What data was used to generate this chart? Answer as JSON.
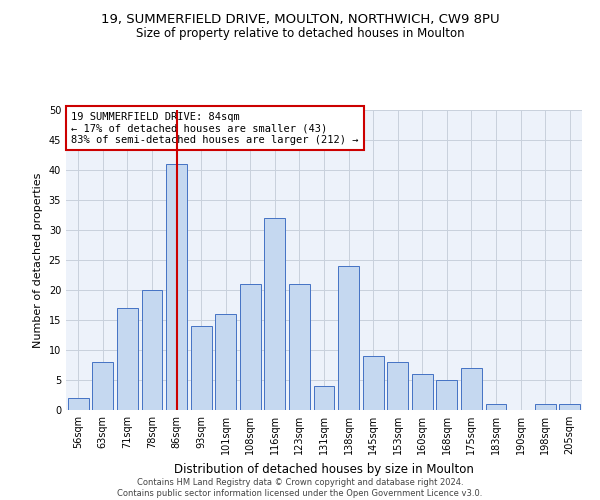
{
  "title1": "19, SUMMERFIELD DRIVE, MOULTON, NORTHWICH, CW9 8PU",
  "title2": "Size of property relative to detached houses in Moulton",
  "xlabel": "Distribution of detached houses by size in Moulton",
  "ylabel": "Number of detached properties",
  "categories": [
    "56sqm",
    "63sqm",
    "71sqm",
    "78sqm",
    "86sqm",
    "93sqm",
    "101sqm",
    "108sqm",
    "116sqm",
    "123sqm",
    "131sqm",
    "138sqm",
    "145sqm",
    "153sqm",
    "160sqm",
    "168sqm",
    "175sqm",
    "183sqm",
    "190sqm",
    "198sqm",
    "205sqm"
  ],
  "values": [
    2,
    8,
    17,
    20,
    41,
    14,
    16,
    21,
    32,
    21,
    4,
    24,
    9,
    8,
    6,
    5,
    7,
    1,
    0,
    1,
    1
  ],
  "bar_color": "#c5d8f0",
  "bar_edge_color": "#4472c4",
  "highlight_bar_index": 4,
  "highlight_line_color": "#cc0000",
  "annotation_text": "19 SUMMERFIELD DRIVE: 84sqm\n← 17% of detached houses are smaller (43)\n83% of semi-detached houses are larger (212) →",
  "annotation_box_color": "white",
  "annotation_box_edge_color": "#cc0000",
  "ylim": [
    0,
    50
  ],
  "yticks": [
    0,
    5,
    10,
    15,
    20,
    25,
    30,
    35,
    40,
    45,
    50
  ],
  "grid_color": "#c8d0dc",
  "background_color": "#edf2fa",
  "footer_text": "Contains HM Land Registry data © Crown copyright and database right 2024.\nContains public sector information licensed under the Open Government Licence v3.0.",
  "title_fontsize": 9.5,
  "subtitle_fontsize": 8.5,
  "xlabel_fontsize": 8.5,
  "ylabel_fontsize": 8,
  "tick_fontsize": 7,
  "annotation_fontsize": 7.5,
  "footer_fontsize": 6.0
}
